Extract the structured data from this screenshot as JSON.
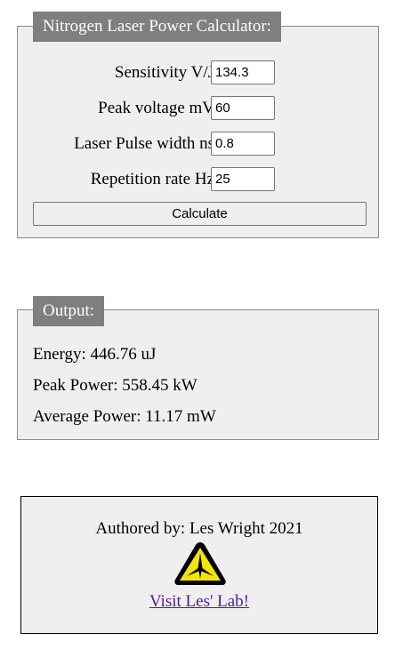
{
  "calculator": {
    "title": "Nitrogen Laser Power Calculator:",
    "fields": [
      {
        "label": "Sensitivity V/J",
        "value": "134.3"
      },
      {
        "label": "Peak voltage mV",
        "value": "60"
      },
      {
        "label": "Laser Pulse width ns",
        "value": "0.8"
      },
      {
        "label": "Repetition rate Hz",
        "value": "25"
      }
    ],
    "button_label": "Calculate"
  },
  "output": {
    "title": "Output:",
    "energy": "Energy: 446.76 uJ",
    "peak_power": "Peak Power: 558.45 kW",
    "average_power": "Average Power: 11.17 mW"
  },
  "footer": {
    "author": "Authored by: Les Wright 2021",
    "logo_icon": "laser-warning-icon",
    "link_text": "Visit Les' Lab!"
  },
  "colors": {
    "panel_bg": "#efefef",
    "legend_bg": "#7f7f7f",
    "link": "#551a8b",
    "logo_yellow": "#f5e500"
  }
}
